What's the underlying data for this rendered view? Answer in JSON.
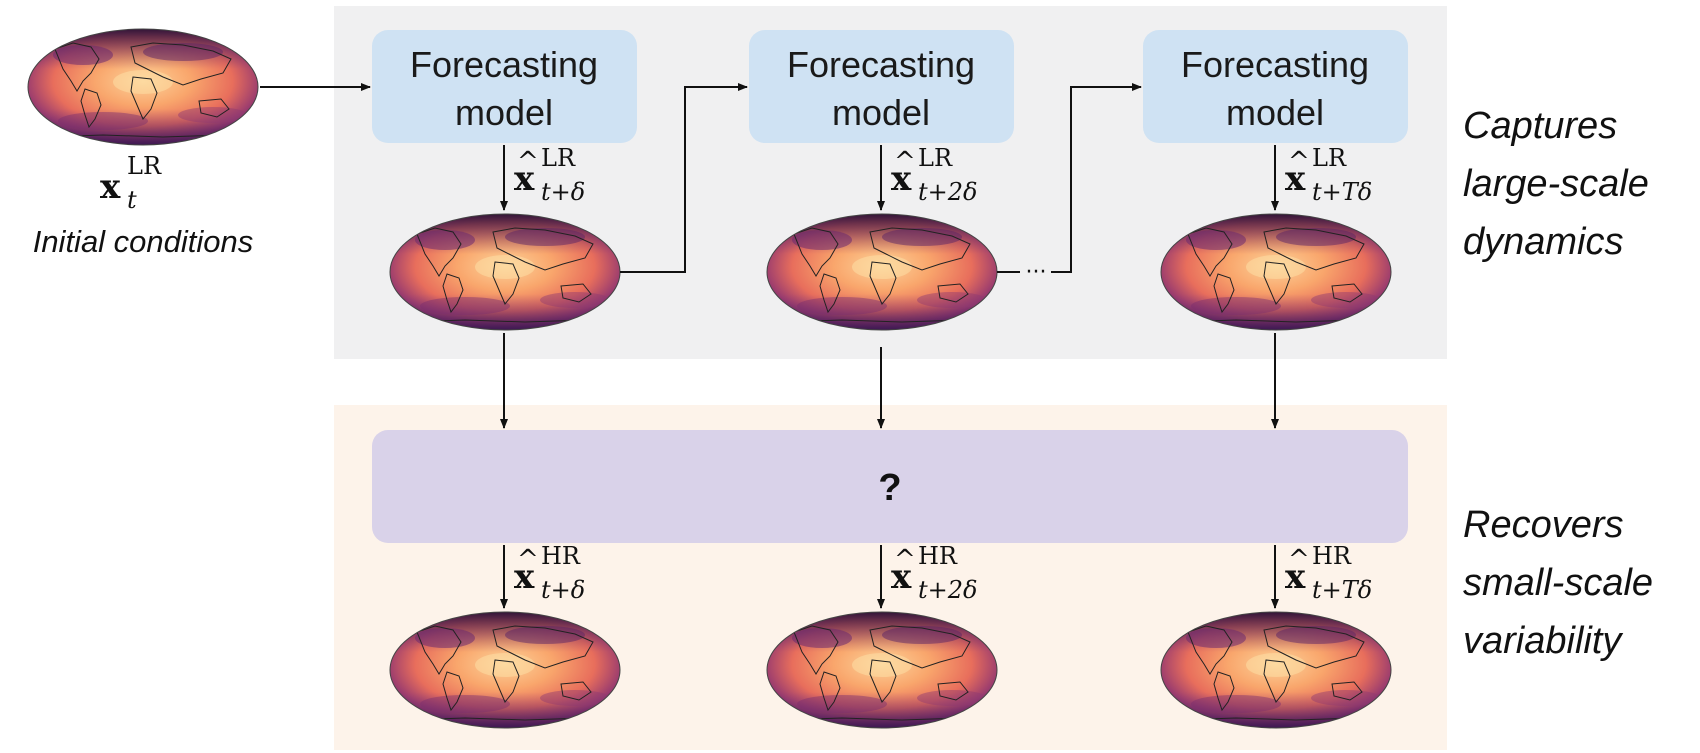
{
  "forecast_boxes": [
    {
      "label_line1": "Forecasting",
      "label_line2": "model"
    },
    {
      "label_line1": "Forecasting",
      "label_line2": "model"
    },
    {
      "label_line1": "Forecasting",
      "label_line2": "model"
    }
  ],
  "initial": {
    "symbol": "x",
    "superscript": "LR",
    "subscript": "t",
    "caption": "Initial conditions"
  },
  "lr_outputs": [
    {
      "symbol": "x",
      "superscript": "LR",
      "subscript": "t+δ"
    },
    {
      "symbol": "x",
      "superscript": "LR",
      "subscript": "t+2δ"
    },
    {
      "symbol": "x",
      "superscript": "LR",
      "subscript": "t+Tδ"
    }
  ],
  "hr_outputs": [
    {
      "symbol": "x",
      "superscript": "HR",
      "subscript": "t+δ"
    },
    {
      "symbol": "x",
      "superscript": "HR",
      "subscript": "t+2δ"
    },
    {
      "symbol": "x",
      "superscript": "HR",
      "subscript": "t+Tδ"
    }
  ],
  "unknown_module": {
    "label": "?"
  },
  "ellipsis": "···",
  "side_labels": {
    "top": [
      "Captures",
      "large-scale",
      "dynamics"
    ],
    "bottom": [
      "Recovers",
      "small-scale",
      "variability"
    ]
  },
  "colors": {
    "forecast_panel_bg": "#f0f0f1",
    "recover_panel_bg": "#fdf3ea",
    "forecast_box": "#cfe2f3",
    "unknown_box": "#d9d2e9",
    "map_ocean_warm": "#f9a66c",
    "map_deep": "#5c2a6b",
    "map_dark": "#2b1235"
  }
}
